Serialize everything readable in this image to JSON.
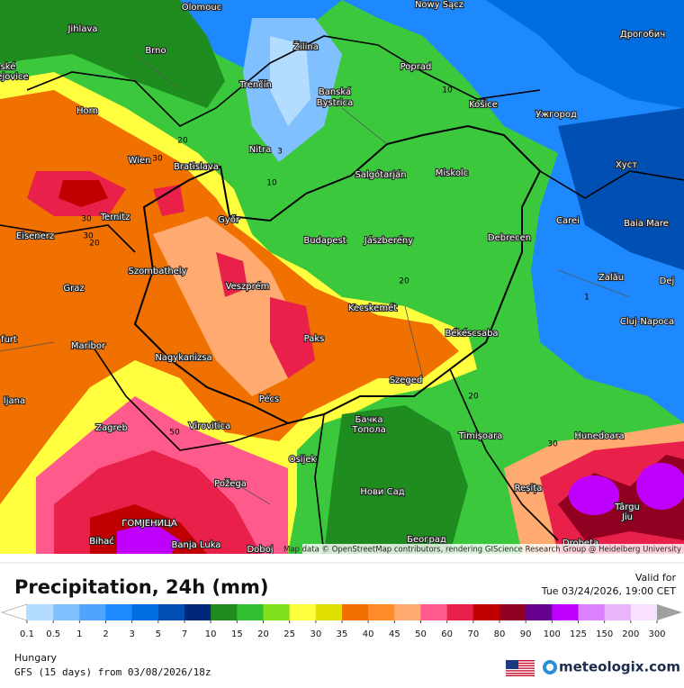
{
  "map": {
    "cities": [
      "Olomouc",
      "Nowy Sącz",
      "Дрогобич",
      "Jihlava",
      "Brno",
      "Žilina",
      "Poprad",
      "Trenčín",
      "Banská",
      "Bystrica",
      "Košice",
      "Ужгород",
      "Horn",
      "Nitra",
      "Хуст",
      "Wien",
      "Bratislava",
      "Salgótarján",
      "Miskolc",
      "Ternitz",
      "Győr",
      "Carei",
      "Baia Mare",
      "Eisenerz",
      "Budapest",
      "Jászberény",
      "Debrecen",
      "Szombathely",
      "Zalău",
      "Graz",
      "Veszprém",
      "Dej",
      "Kecskemét",
      "Cluj-Napoca",
      "Paks",
      "Békéscsaba",
      "Maribor",
      "Nagykanizsa",
      "Szeged",
      "Pécs",
      "ljana",
      "Zagreb",
      "Virovitica",
      "Бачка",
      "Топола",
      "Timișoara",
      "Hunedoara",
      "Osijek",
      "Požega",
      "Reșița",
      "Нови Сад",
      "Târgu",
      "Jiu",
      "ГОМЈЕНИЦА",
      "Bihać",
      "Banja Luka",
      "Doboj",
      "Београд",
      "Drobeta",
      "furt",
      "ské",
      "ejovice"
    ],
    "contour_labels": [
      "30",
      "20",
      "10",
      "3",
      "10",
      "30",
      "20",
      "20",
      "20",
      "30",
      "1",
      "30",
      "50"
    ],
    "attribution": "Map data © OpenStreetMap contributors, rendering GIScience Research Group @ Heidelberg University"
  },
  "legend": {
    "title": "Precipitation, 24h (mm)",
    "valid_label": "Valid for",
    "valid_time": "Tue 03/24/2026, 19:00 CET",
    "levels": [
      "0.1",
      "0.5",
      "1",
      "2",
      "3",
      "5",
      "7",
      "10",
      "15",
      "20",
      "25",
      "30",
      "35",
      "40",
      "45",
      "50",
      "60",
      "70",
      "80",
      "90",
      "100",
      "125",
      "150",
      "200",
      "300"
    ],
    "colors": [
      "#ffffff",
      "#b4dcff",
      "#80c0ff",
      "#4ea4ff",
      "#1e88ff",
      "#006ee0",
      "#0050b4",
      "#00287a",
      "#1e8c1e",
      "#30c030",
      "#80e020",
      "#ffff40",
      "#e0e000",
      "#f07000",
      "#ff8c28",
      "#ffaa70",
      "#ff5a8c",
      "#e8204a",
      "#c00000",
      "#900020",
      "#6a0090",
      "#c000ff",
      "#dc80ff",
      "#ecb4f8",
      "#f8e0ff",
      "#d0d0d0",
      "#a0a0a0"
    ],
    "region": "Hungary",
    "model": "GFS (15 days) from  03/08/2026/18z",
    "brand": "meteologix.com"
  }
}
